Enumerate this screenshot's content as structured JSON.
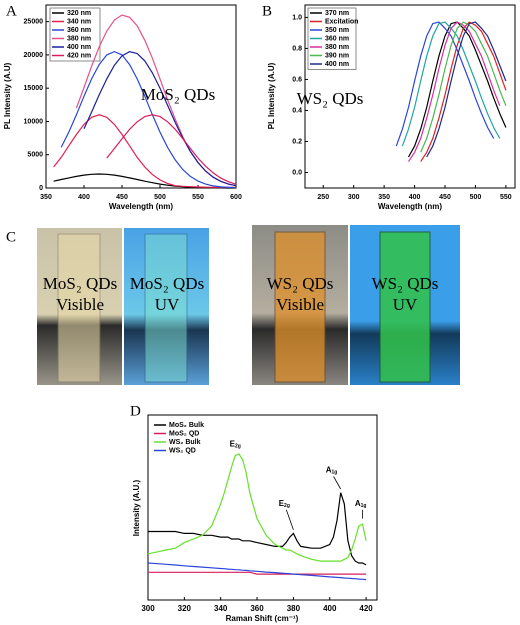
{
  "chart_data": [
    {
      "type": "line",
      "panel": "A",
      "annotation": "MoS₂ QDs",
      "x_label": "Wavelength (nm)",
      "y_label": "PL Intensity (A.U)",
      "x": [
        350,
        360,
        370,
        380,
        390,
        400,
        410,
        420,
        430,
        440,
        450,
        460,
        470,
        480,
        490,
        500,
        510,
        520,
        530,
        540,
        550,
        560,
        570,
        580,
        590,
        600
      ],
      "xlim": [
        350,
        600
      ],
      "xticks": [
        350,
        400,
        450,
        500,
        550,
        600
      ],
      "ylim": [
        0,
        27500
      ],
      "yticks": [
        0,
        5000,
        10000,
        15000,
        20000,
        25000
      ],
      "series": [
        {
          "name": "320 nm",
          "color": "#000000",
          "values": [
            null,
            1020,
            1270,
            1520,
            1750,
            1940,
            2060,
            2100,
            2060,
            1940,
            1750,
            1520,
            1270,
            1020,
            790,
            580,
            420,
            280,
            190,
            120,
            70,
            40,
            20,
            10,
            5,
            0
          ]
        },
        {
          "name": "340 nm",
          "color": "#e3204f",
          "values": [
            null,
            3150,
            4600,
            6340,
            8040,
            9560,
            10620,
            11000,
            10620,
            9560,
            8040,
            6340,
            4600,
            3150,
            2010,
            1210,
            670,
            350,
            250,
            200,
            150,
            120,
            100,
            100,
            100,
            100
          ]
        },
        {
          "name": "360 nm",
          "color": "#2a46d8",
          "values": [
            null,
            null,
            6100,
            8400,
            11000,
            13800,
            16400,
            18550,
            20000,
            20500,
            20000,
            18550,
            16400,
            13800,
            11000,
            8400,
            6100,
            4230,
            2770,
            1740,
            1040,
            580,
            320,
            170,
            90,
            50
          ]
        },
        {
          "name": "380 nm",
          "color": "#e6508a",
          "values": [
            null,
            null,
            null,
            null,
            12000,
            15100,
            18300,
            21200,
            23600,
            25250,
            26000,
            25650,
            24360,
            22200,
            19500,
            16400,
            13250,
            10350,
            7700,
            5500,
            3800,
            2530,
            1610,
            980,
            600,
            350
          ]
        },
        {
          "name": "400 nm",
          "color": "#1b1f9a",
          "values": [
            null,
            null,
            null,
            null,
            null,
            8900,
            11400,
            14000,
            16400,
            18450,
            19870,
            20480,
            20200,
            19100,
            17300,
            15000,
            12440,
            9850,
            7500,
            5480,
            3830,
            2560,
            1630,
            1000,
            590,
            340
          ]
        },
        {
          "name": "420 nm",
          "color": "#d81e5b",
          "values": [
            null,
            null,
            null,
            null,
            null,
            null,
            null,
            null,
            4500,
            5930,
            7400,
            8820,
            9950,
            10730,
            11000,
            10730,
            9950,
            8820,
            7400,
            5930,
            4500,
            3280,
            2270,
            1490,
            940,
            560
          ]
        }
      ]
    },
    {
      "type": "line",
      "panel": "B",
      "annotation": "WS₂ QDs",
      "x_label": "Wavelength (nm)",
      "y_label": "PL Intensity (A.U)",
      "x": [
        360,
        370,
        380,
        390,
        400,
        410,
        420,
        430,
        440,
        450,
        460,
        470,
        480,
        490,
        500,
        510,
        520,
        530,
        540,
        550
      ],
      "xlim": [
        220,
        565
      ],
      "xticks": [
        250,
        300,
        350,
        400,
        450,
        500,
        550
      ],
      "ylim": [
        -0.1,
        1.08
      ],
      "yticks": [
        {
          "value": 0,
          "label": "0.0"
        },
        0.2,
        0.4,
        0.6,
        0.8,
        {
          "value": 1,
          "label": "1.0"
        }
      ],
      "series": [
        {
          "name": "370 nm",
          "color": "#000000",
          "values": [
            null,
            null,
            null,
            0.1,
            0.17,
            0.28,
            0.42,
            0.59,
            0.75,
            0.88,
            0.96,
            0.97,
            0.93,
            0.88,
            0.79,
            0.69,
            0.59,
            0.48,
            0.38,
            0.29
          ]
        },
        {
          "name": "Excitation",
          "color": "#e02020",
          "values": [
            null,
            null,
            null,
            null,
            null,
            0.07,
            0.13,
            0.22,
            0.35,
            0.5,
            0.67,
            0.82,
            0.93,
            0.97,
            0.95,
            0.91,
            0.83,
            0.75,
            0.64,
            0.53
          ]
        },
        {
          "name": "350 nm",
          "color": "#2a46d8",
          "values": [
            null,
            0.17,
            0.28,
            0.42,
            0.59,
            0.75,
            0.88,
            0.96,
            0.97,
            0.93,
            0.88,
            0.79,
            0.69,
            0.59,
            0.48,
            0.38,
            0.29,
            0.22,
            null,
            null
          ]
        },
        {
          "name": "360 nm",
          "color": "#1fa5a5",
          "values": [
            null,
            null,
            0.17,
            0.28,
            0.42,
            0.59,
            0.75,
            0.88,
            0.96,
            0.97,
            0.93,
            0.88,
            0.79,
            0.69,
            0.59,
            0.48,
            0.38,
            0.29,
            0.22,
            null
          ]
        },
        {
          "name": "380 nm",
          "color": "#d62fa0",
          "values": [
            null,
            null,
            null,
            0.07,
            0.13,
            0.22,
            0.35,
            0.5,
            0.67,
            0.82,
            0.93,
            0.97,
            0.95,
            0.91,
            0.83,
            0.75,
            0.64,
            0.53,
            0.43,
            null
          ]
        },
        {
          "name": "390 nm",
          "color": "#4db84d",
          "values": [
            null,
            null,
            null,
            null,
            null,
            0.13,
            0.22,
            0.35,
            0.5,
            0.67,
            0.82,
            0.93,
            0.97,
            0.95,
            0.91,
            0.83,
            0.75,
            0.64,
            0.53,
            0.43
          ]
        },
        {
          "name": "400 nm",
          "color": "#1b2a8c",
          "values": [
            null,
            null,
            null,
            null,
            null,
            null,
            0.1,
            0.17,
            0.28,
            0.42,
            0.59,
            0.75,
            0.88,
            0.96,
            0.97,
            0.93,
            0.88,
            0.79,
            0.69,
            0.59
          ]
        }
      ]
    },
    {
      "type": "line",
      "panel": "D",
      "x_label": "Raman Shift (cm⁻¹)",
      "y_label": "Intensity (A.U.)",
      "annotations": [
        {
          "text": "E",
          "sub": "2g"
        },
        {
          "text": "E",
          "sub": "2g"
        },
        {
          "text": "A",
          "sub": "1g"
        },
        {
          "text": "A",
          "sub": "1g"
        }
      ],
      "x": [
        300,
        305,
        310,
        315,
        320,
        325,
        330,
        335,
        340,
        342,
        344,
        346,
        348,
        350,
        352,
        354,
        356,
        360,
        365,
        370,
        374,
        376,
        378,
        380,
        382,
        384,
        390,
        395,
        400,
        402,
        404,
        406,
        408,
        410,
        412,
        414,
        416,
        418,
        420
      ],
      "xlim": [
        300,
        426
      ],
      "xticks": [
        300,
        320,
        340,
        360,
        380,
        400,
        420
      ],
      "ylim": [
        0,
        100
      ],
      "series": [
        {
          "name": "MoS₂ Bulk",
          "color": "#000000",
          "values": [
            37,
            37,
            37,
            37,
            36,
            36,
            35,
            35,
            34,
            34,
            34,
            33,
            33,
            33,
            32,
            32,
            32,
            31,
            30,
            29,
            29,
            31,
            34,
            36,
            32,
            29,
            28,
            28,
            30,
            34,
            43,
            58,
            52,
            32,
            24,
            21,
            20,
            20,
            19
          ]
        },
        {
          "name": "MoS₂ QD",
          "color": "#d81e5b",
          "values": [
            15,
            15,
            15,
            15,
            15,
            15,
            15,
            15,
            15,
            15,
            15,
            15,
            15,
            15,
            15,
            15,
            15,
            14,
            14,
            14,
            14,
            14,
            14,
            14,
            14,
            14,
            14,
            14,
            14,
            14,
            14,
            14,
            14,
            14,
            14,
            14,
            14,
            14,
            14
          ]
        },
        {
          "name": "WS₂ Bulk",
          "color": "#66e02a",
          "values": [
            25,
            26,
            27,
            28,
            31,
            33,
            35,
            40,
            52,
            58,
            65,
            72,
            78,
            79,
            76,
            69,
            58,
            44,
            35,
            30,
            28,
            27,
            27,
            26,
            25,
            24,
            22,
            21,
            21,
            21,
            21,
            21,
            22,
            23,
            27,
            33,
            40,
            41,
            32
          ]
        },
        {
          "name": "WS₂ QD",
          "color": "#2a46d8",
          "values": [
            20,
            19.6,
            19.3,
            18.9,
            18.5,
            18.1,
            17.8,
            17.4,
            17,
            16.9,
            16.7,
            16.6,
            16.4,
            16.3,
            16.1,
            16,
            15.8,
            15.5,
            15.1,
            14.8,
            14.5,
            14.3,
            14.2,
            14,
            13.9,
            13.7,
            13.3,
            12.9,
            12.5,
            12.4,
            12.2,
            12.1,
            11.9,
            11.8,
            11.6,
            11.5,
            11.3,
            11.2,
            11
          ]
        }
      ]
    }
  ],
  "photo_panel": {
    "label": "C",
    "photos": [
      {
        "lines": [
          "MoS₂ QDs",
          "Visible"
        ]
      },
      {
        "lines": [
          "MoS₂ QDs",
          "UV"
        ]
      },
      {
        "lines": [
          "WS₂ QDs",
          "Visible"
        ]
      },
      {
        "lines": [
          "WS₂ QDs",
          "UV"
        ]
      }
    ]
  }
}
